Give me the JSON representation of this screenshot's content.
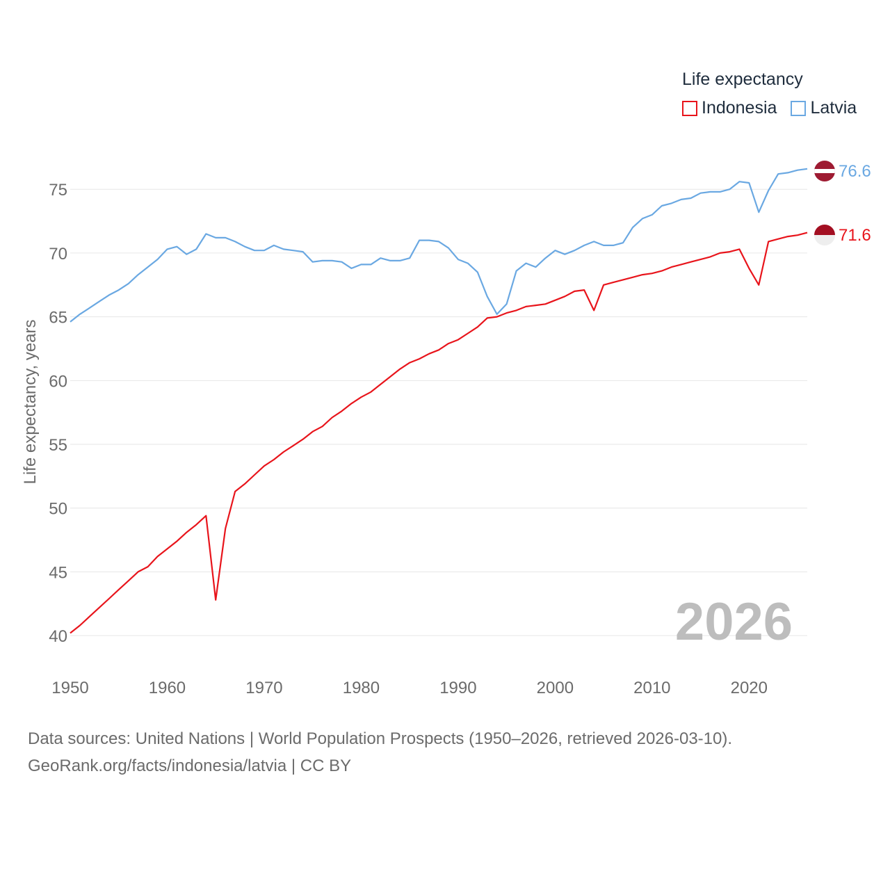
{
  "legend": {
    "title": "Life expectancy",
    "items": [
      {
        "name": "Indonesia",
        "color": "#e8141b"
      },
      {
        "name": "Latvia",
        "color": "#6aa8e2"
      }
    ]
  },
  "footer": {
    "line1": "Data sources: United Nations | World Population Prospects (1950–2026, retrieved 2026-03-10).",
    "line2": "GeoRank.org/facts/indonesia/latvia | CC BY"
  },
  "chart_data": {
    "type": "line",
    "title": "Life expectancy",
    "xlabel": "",
    "ylabel": "Life expectancy, years",
    "year_label": "2026",
    "xlim": [
      1950,
      2026
    ],
    "ylim": [
      37.5,
      78.5
    ],
    "x_ticks": [
      1950,
      1960,
      1970,
      1980,
      1990,
      2000,
      2010,
      2020
    ],
    "y_ticks": [
      40,
      45,
      50,
      55,
      60,
      65,
      70,
      75
    ],
    "grid": true,
    "legend_position": "top-right",
    "x": [
      1950,
      1951,
      1952,
      1953,
      1954,
      1955,
      1956,
      1957,
      1958,
      1959,
      1960,
      1961,
      1962,
      1963,
      1964,
      1965,
      1966,
      1967,
      1968,
      1969,
      1970,
      1971,
      1972,
      1973,
      1974,
      1975,
      1976,
      1977,
      1978,
      1979,
      1980,
      1981,
      1982,
      1983,
      1984,
      1985,
      1986,
      1987,
      1988,
      1989,
      1990,
      1991,
      1992,
      1993,
      1994,
      1995,
      1996,
      1997,
      1998,
      1999,
      2000,
      2001,
      2002,
      2003,
      2004,
      2005,
      2006,
      2007,
      2008,
      2009,
      2010,
      2011,
      2012,
      2013,
      2014,
      2015,
      2016,
      2017,
      2018,
      2019,
      2020,
      2021,
      2022,
      2023,
      2024,
      2025,
      2026
    ],
    "series": [
      {
        "name": "Indonesia",
        "color": "#e8141b",
        "end_label": "71.6",
        "values": [
          40.2,
          40.8,
          41.5,
          42.2,
          42.9,
          43.6,
          44.3,
          45.0,
          45.4,
          46.2,
          46.8,
          47.4,
          48.1,
          48.7,
          49.4,
          42.8,
          48.4,
          51.3,
          51.9,
          52.6,
          53.3,
          53.8,
          54.4,
          54.9,
          55.4,
          56.0,
          56.4,
          57.1,
          57.6,
          58.2,
          58.7,
          59.1,
          59.7,
          60.3,
          60.9,
          61.4,
          61.7,
          62.1,
          62.4,
          62.9,
          63.2,
          63.7,
          64.2,
          64.9,
          65.0,
          65.3,
          65.5,
          65.8,
          65.9,
          66.0,
          66.3,
          66.6,
          67.0,
          67.1,
          65.5,
          67.5,
          67.7,
          67.9,
          68.1,
          68.3,
          68.4,
          68.6,
          68.9,
          69.1,
          69.3,
          69.5,
          69.7,
          70.0,
          70.1,
          70.3,
          68.8,
          67.5,
          70.9,
          71.1,
          71.3,
          71.4,
          71.6
        ]
      },
      {
        "name": "Latvia",
        "color": "#6aa8e2",
        "end_label": "76.6",
        "values": [
          64.6,
          65.2,
          65.7,
          66.2,
          66.7,
          67.1,
          67.6,
          68.3,
          68.9,
          69.5,
          70.3,
          70.5,
          69.9,
          70.3,
          71.5,
          71.2,
          71.2,
          70.9,
          70.5,
          70.2,
          70.2,
          70.6,
          70.3,
          70.2,
          70.1,
          69.3,
          69.4,
          69.4,
          69.3,
          68.8,
          69.1,
          69.1,
          69.6,
          69.4,
          69.4,
          69.6,
          71.0,
          71.0,
          70.9,
          70.4,
          69.5,
          69.2,
          68.5,
          66.6,
          65.2,
          66.0,
          68.6,
          69.2,
          68.9,
          69.6,
          70.2,
          69.9,
          70.2,
          70.6,
          70.9,
          70.6,
          70.6,
          70.8,
          72.0,
          72.7,
          73.0,
          73.7,
          73.9,
          74.2,
          74.3,
          74.7,
          74.8,
          74.8,
          75.0,
          75.6,
          75.5,
          73.2,
          74.9,
          76.2,
          76.3,
          76.5,
          76.6
        ]
      }
    ]
  }
}
